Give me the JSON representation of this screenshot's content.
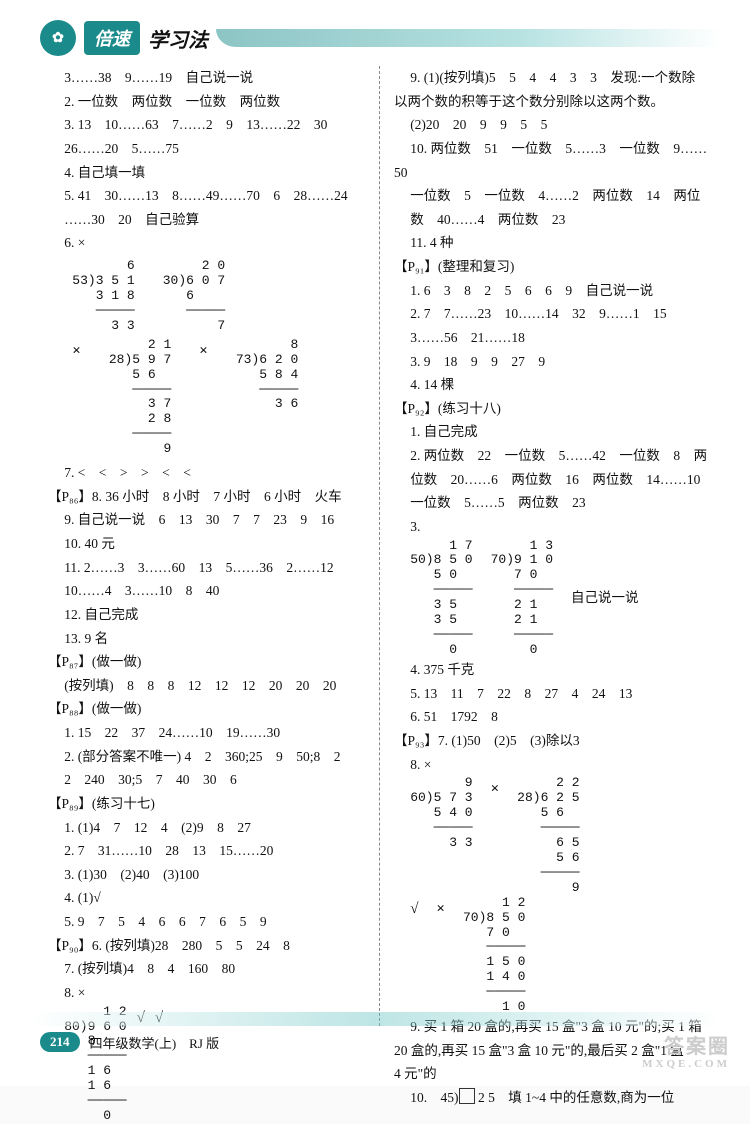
{
  "brand": {
    "logo_glyph": "✿",
    "box": "倍速",
    "tail": "学习法"
  },
  "left": {
    "l01": "3……38　9……19　自己说一说",
    "l02": "2. 一位数　两位数　一位数　两位数",
    "l03": "3. 13　10……63　7……2　9　13……22　30",
    "l04": "26……20　5……75",
    "l05": "4. 自己填一填",
    "l06": "5. 41　30……13　8……49……70　6　28……24",
    "l07": "……30　20　自己验算",
    "l08": "6. ×",
    "ld6a_mark": "×",
    "ld6a": "       6\n53)3 5 1\n   3 1 8\n   ─────\n     3 3",
    "ld6b": "     2 0\n30)6 0 7\n   6\n   ─────\n       7",
    "ld6c_mark": "×",
    "ld6c": "     2 1\n28)5 9 7\n   5 6\n   ─────\n     3 7\n     2 8\n   ─────\n       9",
    "ld6d_mark": "×",
    "ld6d": "       8\n73)6 2 0\n   5 8 4\n   ─────\n     3 6",
    "l09": "7. <　<　>　>　<　<",
    "p86": "【P₈₆】",
    "l10": "8. 36 小时　8 小时　7 小时　6 小时　火车",
    "l11": "9. 自己说一说　6　13　30　7　7　23　9　16",
    "l12": "10. 40 元",
    "l13": "11. 2……3　3……60　13　5……36　2……12",
    "l14": "10……4　3……10　8　40",
    "l15": "12. 自己完成",
    "l16": "13. 9 名",
    "p87": "【P₈₇】(做一做)",
    "l17": "(按列填)　8　8　8　12　12　12　20　20　20",
    "p88": "【P₈₈】(做一做)",
    "l18": "1. 15　22　37　24……10　19……30",
    "l19": "2. (部分答案不唯一) 4　2　360;25　9　50;8　2",
    "l20": "2　240　30;5　7　40　30　6",
    "p89": "【P₈₉】(练习十七)",
    "l21": "1. (1)4　7　12　4　(2)9　8　27",
    "l22": "2. 7　31……10　28　13　15……20",
    "l23": "3. (1)30　(2)40　(3)100",
    "l24": "4. (1)√",
    "l25": "5. 9　7　5　4　6　6　7　6　5　9",
    "p90": "【P₉₀】",
    "l26": "6. (按列填)28　280　5　5　24　8",
    "l27": "7. (按列填)4　8　4　160　80",
    "l28": "8. ×",
    "ld8a_mark": "×",
    "ld8a": "     1 2\n80)9 6 0\n   8\n   ─────\n   1 6\n   1 6\n   ─────\n     0",
    "ld8b_mark": "√",
    "ld8c_mark": "√"
  },
  "right": {
    "l01": "9. (1)(按列填)5　5　4　4　3　3　发现:一个数除",
    "l02": "以两个数的积等于这个数分别除以这两个数。",
    "l03": "(2)20　20　9　9　5　5",
    "l04": "10. 两位数　51　一位数　5……3　一位数　9……50",
    "l05": "一位数　5　一位数　4……2　两位数　14　两位",
    "l06": "数　40……4　两位数　23",
    "l07": "11. 4 种",
    "p91": "【P₉₁】(整理和复习)",
    "l08": "1. 6　3　8　2　5　6　6　9　自己说一说",
    "l09": "2. 7　7……23　10……14　32　9……1　15",
    "l10": "3……56　21……18",
    "l11": "3. 9　18　9　9　27　9",
    "l12": "4. 14 棵",
    "p92": "【P₉₂】(练习十八)",
    "l13": "1. 自己完成",
    "l14": "2. 两位数　22　一位数　5……42　一位数　8　两",
    "l15": "位数　20……6　两位数　16　两位数　14……10",
    "l16": "一位数　5……5　两位数　23",
    "l17": "3.",
    "ld3a": "     1 7\n50)8 5 0\n   5 0\n   ─────\n   3 5\n   3 5\n   ─────\n     0",
    "ld3b": "     1 3\n70)9 1 0\n   7 0\n   ─────\n   2 1\n   2 1\n   ─────\n     0",
    "ld3_tail": "自己说一说",
    "l18": "4. 375 千克",
    "l19": "5. 13　11　7　22　8　27　4　24　13",
    "l20": "6. 51　1792　8",
    "p93": "【P₉₃】",
    "l21": "7. (1)50　(2)5　(3)除以3",
    "l22": "8. ×",
    "ld8a": "       9\n60)5 7 3\n   5 4 0\n   ─────\n     3 3",
    "ld8a_mark": "",
    "ld8b_mark": "×",
    "ld8b": "     2 2\n28)6 2 5\n   5 6\n   ─────\n     6 5\n     5 6\n   ─────\n       9",
    "ld8c_mark": "√",
    "ld8d_mark": "×",
    "ld8d": "     1 2\n70)8 5 0\n   7 0\n   ─────\n   1 5 0\n   1 4 0\n   ─────\n     1 0",
    "l23": "9. 买 1 箱 20 盒的,再买 15 盒\"3 盒 10 元\"的;买 1 箱",
    "l24": "20 盒的,再买 15 盒\"3 盒 10 元\"的,最后买 2 盒\"1 盒",
    "l25": "4 元\"的",
    "l26a": "10.　45)",
    "l26b": " 2 5　填 1~4 中的任意数,商为一位"
  },
  "footer": {
    "page": "214",
    "text": "四年级数学(上)　RJ 版"
  },
  "watermark": {
    "big": "答案圈",
    "small": "MXQE.COM"
  }
}
